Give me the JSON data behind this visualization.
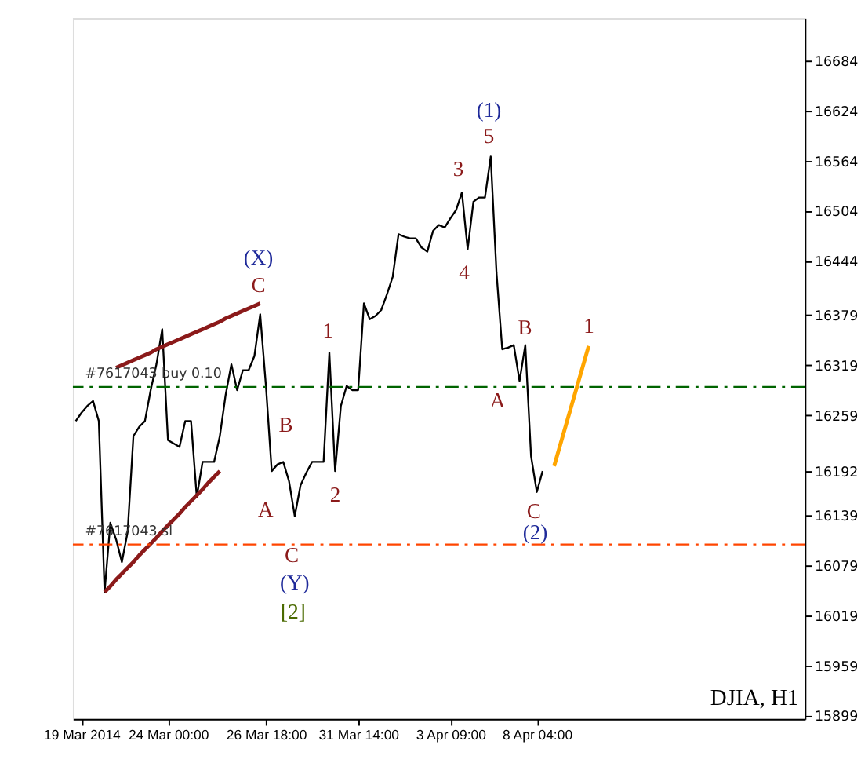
{
  "chart_data": {
    "type": "line",
    "categories": [
      null,
      "19 Mar 2014",
      null,
      null,
      null,
      null,
      null,
      null,
      null,
      null,
      null,
      null,
      null,
      null,
      null,
      null,
      "24 Mar 00:00",
      null,
      null,
      null,
      null,
      null,
      null,
      null,
      null,
      null,
      null,
      null,
      null,
      null,
      null,
      null,
      null,
      "26 Mar 18:00",
      null,
      null,
      null,
      null,
      null,
      null,
      null,
      null,
      null,
      null,
      null,
      null,
      null,
      null,
      null,
      "31 Mar 14:00",
      null,
      null,
      null,
      null,
      null,
      null,
      null,
      null,
      null,
      null,
      null,
      null,
      null,
      null,
      null,
      "3 Apr 09:00",
      null,
      null,
      null,
      null,
      null,
      null,
      null,
      null,
      null,
      null,
      null,
      null,
      null,
      null,
      "8 Apr 04:00",
      null,
      null,
      null,
      null,
      null,
      null,
      null,
      null,
      null,
      null,
      null,
      null,
      null,
      null,
      null,
      null,
      null,
      null,
      null,
      null,
      null,
      null,
      null,
      null,
      null,
      null,
      null,
      null,
      null,
      null,
      null,
      null,
      null,
      null,
      null,
      null,
      null,
      null,
      null,
      null,
      null,
      null,
      null,
      null,
      null,
      null
    ],
    "ylim": [
      15895,
      16735
    ],
    "yticks": [
      15899,
      15959,
      16019,
      16079,
      16139,
      16192,
      16259,
      16319,
      16379,
      16444,
      16504,
      16564,
      16624,
      16684
    ],
    "grid": false,
    "marker": "none",
    "line_style": "solid",
    "series": [
      {
        "color": "#000000",
        "values": [
          16252,
          16262,
          16270,
          16276,
          16252,
          16047,
          16130,
          16110,
          16083,
          16119,
          16234,
          16245,
          16252,
          16289,
          16320,
          16362,
          16229,
          16225,
          16221,
          16252,
          16252,
          16161,
          16203,
          16203,
          16203,
          16234,
          16283,
          16320,
          16289,
          16313,
          16313,
          16330,
          16380,
          16294,
          16192,
          16200,
          16203,
          16180,
          16138,
          16175,
          16190,
          16203,
          16203,
          16203,
          16334,
          16192,
          16270,
          16294,
          16289,
          16289,
          16393,
          16374,
          16378,
          16385,
          16404,
          16425,
          16476,
          16473,
          16471,
          16471,
          16460,
          16455,
          16480,
          16487,
          16484,
          16495,
          16505,
          16526,
          16458,
          16515,
          16520,
          16520,
          16569,
          16430,
          16338,
          16340,
          16343,
          16300,
          16343,
          16210,
          16167,
          16192,
          null,
          null,
          null,
          null,
          null,
          null,
          null,
          null,
          null,
          null,
          null,
          null,
          null,
          null,
          null,
          null,
          null,
          null,
          null,
          null,
          null,
          null,
          null,
          null,
          null,
          null,
          null,
          null,
          null,
          null,
          null,
          null,
          null,
          null,
          null,
          null,
          null,
          null,
          null,
          null,
          null,
          null,
          null,
          null,
          null
        ]
      },
      {
        "color": "#8b1a1a",
        "values": [
          null,
          null,
          null,
          null,
          null,
          null,
          null,
          16316,
          16319,
          16322,
          16325,
          16328,
          16331,
          16334,
          16338,
          16341,
          16344,
          16347,
          16350,
          16353,
          16356,
          16359,
          16362,
          16365,
          16368,
          16371,
          16375,
          16378,
          16381,
          16384,
          16387,
          16390,
          16393,
          null,
          null,
          null,
          null,
          null,
          null,
          null,
          null,
          null,
          null,
          null,
          null,
          null,
          null,
          null,
          null,
          null,
          null,
          null,
          null,
          null,
          null,
          null,
          null,
          null,
          null,
          null,
          null,
          null,
          null,
          null,
          null,
          null,
          null,
          null,
          null,
          null,
          null,
          null,
          null,
          null,
          null,
          null,
          null,
          null,
          null,
          null,
          null,
          null,
          null,
          null,
          null,
          null,
          null,
          null,
          null,
          null,
          null,
          null,
          null,
          null,
          null,
          null,
          null,
          null,
          null,
          null,
          null,
          null,
          null,
          null,
          null,
          null,
          null,
          null,
          null,
          null,
          null,
          null,
          null,
          null,
          null,
          null,
          null,
          null,
          null,
          null,
          null,
          null,
          null,
          null,
          null,
          null,
          null
        ]
      },
      {
        "color": "#8b1a1a",
        "values": [
          null,
          null,
          null,
          null,
          null,
          16047,
          16054,
          16062,
          16069,
          16076,
          16083,
          16091,
          16098,
          16105,
          16112,
          16120,
          16127,
          16134,
          16141,
          16149,
          16156,
          16163,
          16170,
          16178,
          16185,
          16192,
          null,
          null,
          null,
          null,
          null,
          null,
          null,
          null,
          null,
          null,
          null,
          null,
          null,
          null,
          null,
          null,
          null,
          null,
          null,
          null,
          null,
          null,
          null,
          null,
          null,
          null,
          null,
          null,
          null,
          null,
          null,
          null,
          null,
          null,
          null,
          null,
          null,
          null,
          null,
          null,
          null,
          null,
          null,
          null,
          null,
          null,
          null,
          null,
          null,
          null,
          null,
          null,
          null,
          null,
          null,
          null,
          null,
          null,
          null,
          null,
          null,
          null,
          null,
          null,
          null,
          null,
          null,
          null,
          null,
          null,
          null,
          null,
          null,
          null,
          null,
          null,
          null,
          null,
          null,
          null,
          null,
          null,
          null,
          null,
          null,
          null,
          null,
          null,
          null,
          null,
          null,
          null,
          null,
          null,
          null,
          null,
          null,
          null,
          null,
          null,
          null
        ]
      },
      {
        "color": "#ffa500",
        "values": [
          null,
          null,
          null,
          null,
          null,
          null,
          null,
          null,
          null,
          null,
          null,
          null,
          null,
          null,
          null,
          null,
          null,
          null,
          null,
          null,
          null,
          null,
          null,
          null,
          null,
          null,
          null,
          null,
          null,
          null,
          null,
          null,
          null,
          null,
          null,
          null,
          null,
          null,
          null,
          null,
          null,
          null,
          null,
          null,
          null,
          null,
          null,
          null,
          null,
          null,
          null,
          null,
          null,
          null,
          null,
          null,
          null,
          null,
          null,
          null,
          null,
          null,
          null,
          null,
          null,
          null,
          null,
          null,
          null,
          null,
          null,
          null,
          null,
          null,
          null,
          null,
          null,
          null,
          null,
          null,
          null,
          null,
          null,
          16198,
          16222,
          16246,
          16270,
          16294,
          16318,
          16342,
          null,
          null,
          null,
          null,
          null,
          null,
          null,
          null,
          null,
          null,
          null,
          null,
          null,
          null,
          null,
          null,
          null,
          null,
          null,
          null,
          null,
          null,
          null,
          null,
          null,
          null,
          null,
          null,
          null,
          null,
          null,
          null,
          null,
          null,
          null,
          null,
          null
        ]
      }
    ],
    "ref_lines": [
      {
        "axis": "y",
        "value": 16293,
        "label": "#7617043 buy 0.10",
        "color": "#006400",
        "line_style": "dashed"
      },
      {
        "axis": "y",
        "value": 16104,
        "label": "#7617043 sl",
        "color": "#ff4500",
        "line_style": "dashed"
      }
    ],
    "annotations": [
      "(X)",
      "C",
      "1",
      "B",
      "A",
      "2",
      "C",
      "(Y)",
      "[2]",
      "(1)",
      "5",
      "3",
      "4",
      "A",
      "B",
      "C",
      "(2)",
      "1",
      "DJIA, H1"
    ]
  }
}
